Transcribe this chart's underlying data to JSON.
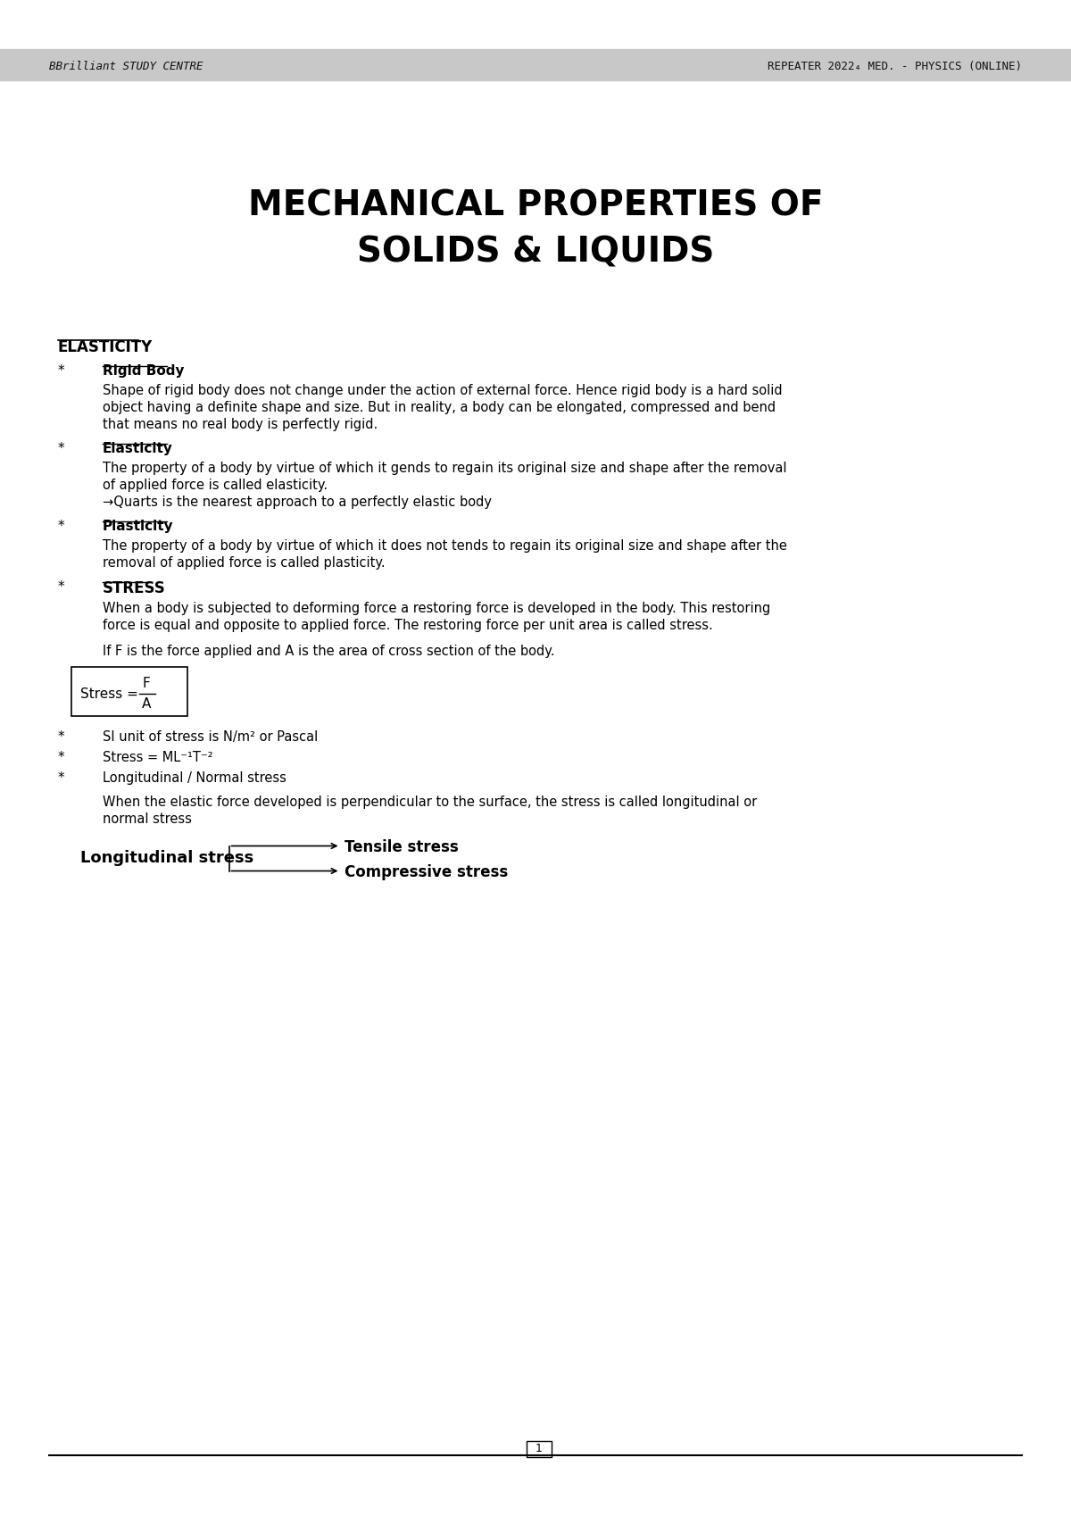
{
  "header_left": "BBrilliant STUDY CENTRE",
  "header_right": "REPEATER 2022₄ MED. - PHYSICS (ONLINE)",
  "header_bg": "#c8c8c8",
  "title_line1": "MECHANICAL PROPERTIES OF",
  "title_line2": "SOLIDS & LIQUIDS",
  "bg_color": "#ffffff",
  "text_color": "#000000",
  "section_elasticity": "ELASTICITY",
  "bullet_char": "*",
  "items": [
    {
      "heading": "Rigid Body",
      "heading_style": "bold_underline",
      "body": "Shape of rigid body does not change under the action of external force. Hence rigid body is a hard solid\nobject having a definite shape and size. But in reality, a body can be elongated, compressed and bend\nthat means no real body is perfectly rigid."
    },
    {
      "heading": "Elasticity",
      "heading_style": "bold_underline",
      "body": "The property of a body by virtue of which it gends to regain its original size and shape after the removal\nof applied force is called elasticity.",
      "note": "→Quarts is the nearest approach to a perfectly elastic body"
    },
    {
      "heading": "Plasticity",
      "heading_style": "bold_underline",
      "body": "The property of a body by virtue of which it does not tends to regain its original size and shape after the\nremoval of applied force is called plasticity."
    },
    {
      "heading": "STRESS",
      "heading_style": "bold_underline",
      "body": "When a body is subjected to deforming force a restoring force is developed in the body. This restoring\nforce is equal and opposite to applied force. The restoring force per unit area is called stress.\n\nIf F is the force applied and A is the area of cross section of the body."
    }
  ],
  "stress_formula": "Stress = F / A",
  "bullet_items_after_stress": [
    "SI unit of stress is N/m² or Pascal",
    "Stress = ML⁻¹T⁻²",
    "Longitudinal / Normal stress"
  ],
  "long_stress_body": "When the elastic force developed is perpendicular to the surface, the stress is called longitudinal or\nnormal stress",
  "diagram_label_left": "Longitudinal stress",
  "diagram_arrow1": "Tensile stress",
  "diagram_arrow2": "Compressive stress",
  "footer_page": "1"
}
